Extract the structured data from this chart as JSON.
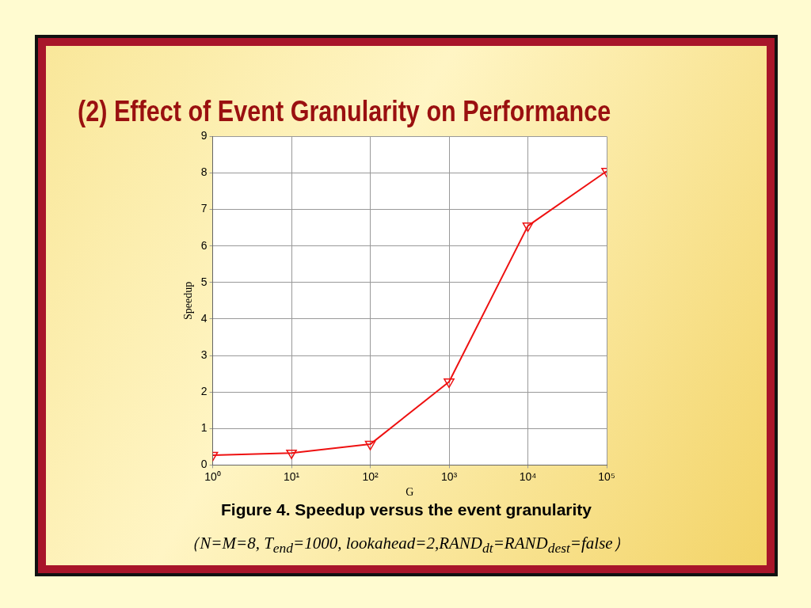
{
  "chart_data": {
    "type": "line",
    "title": "(2) Effect of Event Granularity on Performance",
    "xlabel": "G",
    "ylabel": "Speedup",
    "x": [
      1,
      10,
      100,
      1000,
      10000,
      100000
    ],
    "series": [
      {
        "color": "#ee1111",
        "values": [
          0.27,
          0.33,
          0.57,
          2.28,
          6.55,
          8.05
        ]
      }
    ],
    "log": "x",
    "xlim": [
      1,
      100000
    ],
    "xticks": [
      {
        "value": 1,
        "label": "10⁰"
      },
      {
        "value": 10,
        "label": "10¹"
      },
      {
        "value": 100,
        "label": "10²"
      },
      {
        "value": 1000,
        "label": "10³"
      },
      {
        "value": 10000,
        "label": "10⁴"
      },
      {
        "value": 100000,
        "label": "10⁵"
      }
    ],
    "ylim": [
      0,
      9
    ],
    "yticks": [
      0,
      1,
      2,
      3,
      4,
      5,
      6,
      7,
      8,
      9
    ],
    "grid": true,
    "marker": "triangle",
    "line_style": "solid",
    "annotations": [
      "Figure 4. Speedup versus the event granularity",
      "（N=M=8, T$_{end}$=1000, lookahead=2,RAND$_{dt}$=RAND$_{dest}$=false）"
    ]
  }
}
